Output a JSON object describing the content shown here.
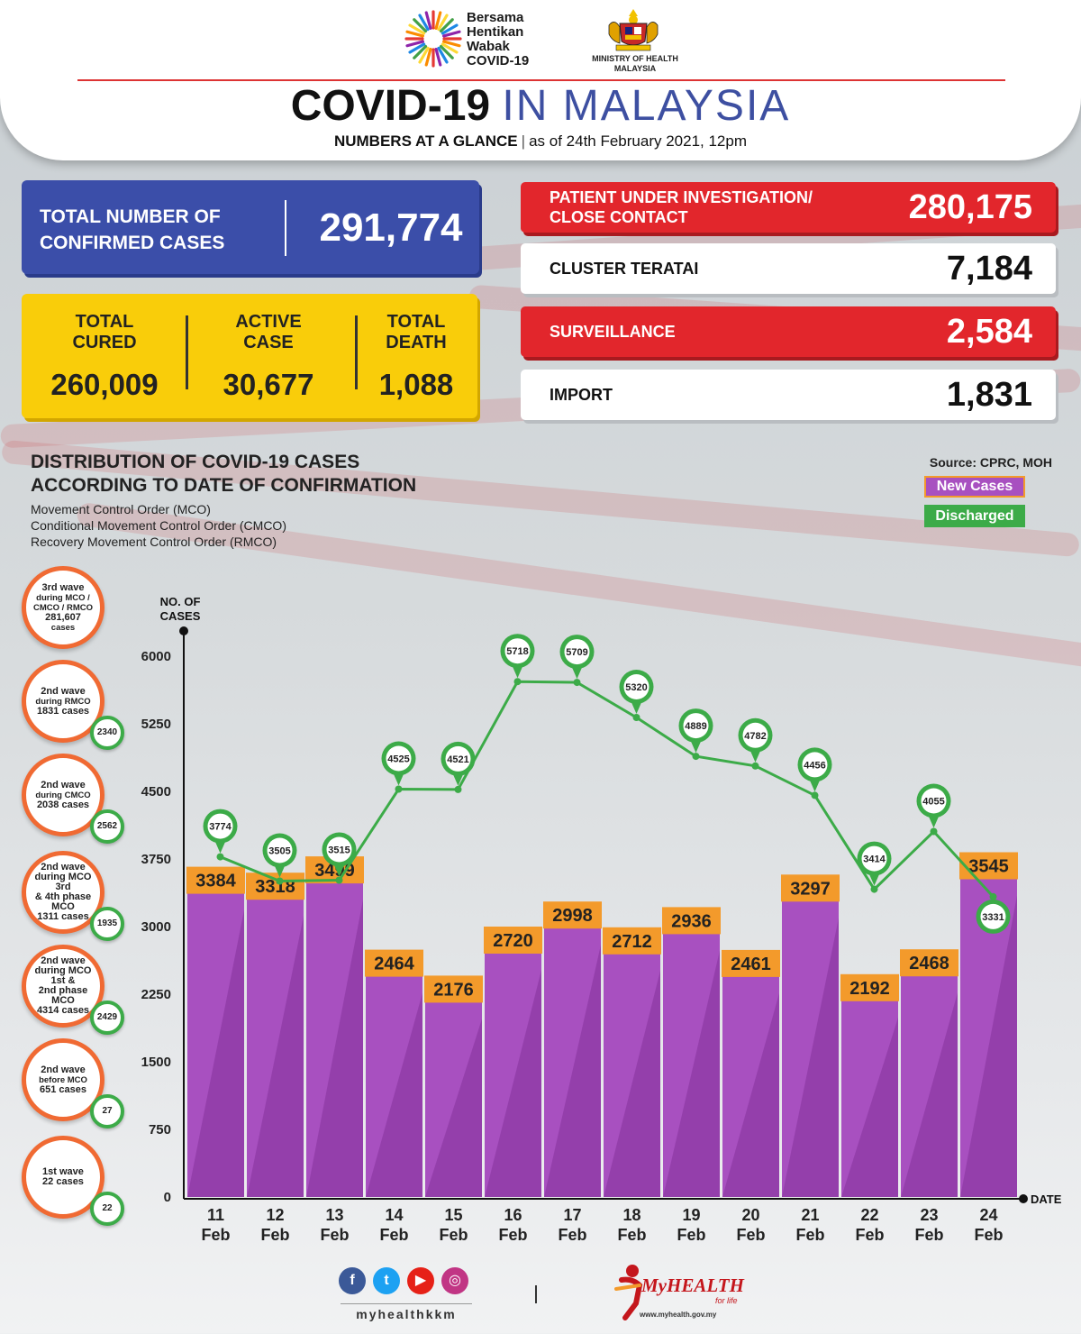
{
  "header": {
    "campaign_lines": [
      "Bersama",
      "Hentikan",
      "Wabak",
      "COVID-19"
    ],
    "ministry_lines": [
      "MINISTRY OF HEALTH",
      "MALAYSIA"
    ],
    "title_bold": "COVID-19",
    "title_light": "IN MALAYSIA",
    "subtitle_bold": "NUMBERS AT A GLANCE",
    "subtitle_date": "as of 24th February 2021, 12pm"
  },
  "confirmed": {
    "label_lines": [
      "TOTAL NUMBER OF",
      "CONFIRMED CASES"
    ],
    "value": "291,774"
  },
  "summary": [
    {
      "label_lines": [
        "TOTAL",
        "CURED"
      ],
      "value": "260,009"
    },
    {
      "label_lines": [
        "ACTIVE",
        "CASE"
      ],
      "value": "30,677"
    },
    {
      "label_lines": [
        "TOTAL",
        "DEATH"
      ],
      "value": "1,088"
    }
  ],
  "categories_right": [
    {
      "label_lines": [
        "PATIENT UNDER INVESTIGATION/",
        "CLOSE CONTACT"
      ],
      "value": "280,175",
      "style": "red"
    },
    {
      "label_lines": [
        "CLUSTER TERATAI"
      ],
      "value": "7,184",
      "style": "white"
    },
    {
      "label_lines": [
        "SURVEILLANCE"
      ],
      "value": "2,584",
      "style": "red"
    },
    {
      "label_lines": [
        "IMPORT"
      ],
      "value": "1,831",
      "style": "white"
    }
  ],
  "chart_header": {
    "title_lines": [
      "DISTRIBUTION OF COVID-19 CASES",
      "ACCORDING TO DATE OF CONFIRMATION"
    ],
    "subtitle_lines": [
      "Movement Control Order (MCO)",
      "Conditional Movement Control Order (CMCO)",
      "Recovery Movement Control Order (RMCO)"
    ],
    "source": "Source: CPRC, MOH",
    "legend_new": "New Cases",
    "legend_discharged": "Discharged"
  },
  "waves": [
    {
      "lines": [
        "3rd wave",
        "during MCO /",
        "CMCO / RMCO",
        "281,607",
        "cases"
      ],
      "badge": ""
    },
    {
      "lines": [
        "2nd wave",
        "during RMCO",
        "1831 cases"
      ],
      "badge": "2340"
    },
    {
      "lines": [
        "2nd wave",
        "during CMCO",
        "2038 cases"
      ],
      "badge": "2562"
    },
    {
      "lines": [
        "2nd wave",
        "during MCO 3rd",
        "& 4th phase MCO",
        "1311 cases"
      ],
      "badge": "1935"
    },
    {
      "lines": [
        "2nd wave",
        "during MCO 1st &",
        "2nd phase MCO",
        "4314 cases"
      ],
      "badge": "2429"
    },
    {
      "lines": [
        "2nd wave",
        "before MCO",
        "651 cases"
      ],
      "badge": "27"
    },
    {
      "lines": [
        "1st wave",
        "22 cases"
      ],
      "badge": "22"
    }
  ],
  "chart_data": {
    "type": "bar",
    "ylabel_lines": [
      "NO. OF",
      "CASES"
    ],
    "xlabel": "DATE",
    "ylim": [
      0,
      6000
    ],
    "yticks": [
      0,
      750,
      1500,
      2250,
      3000,
      3750,
      4500,
      5250,
      6000
    ],
    "categories": [
      [
        "11",
        "Feb"
      ],
      [
        "12",
        "Feb"
      ],
      [
        "13",
        "Feb"
      ],
      [
        "14",
        "Feb"
      ],
      [
        "15",
        "Feb"
      ],
      [
        "16",
        "Feb"
      ],
      [
        "17",
        "Feb"
      ],
      [
        "18",
        "Feb"
      ],
      [
        "19",
        "Feb"
      ],
      [
        "20",
        "Feb"
      ],
      [
        "21",
        "Feb"
      ],
      [
        "22",
        "Feb"
      ],
      [
        "23",
        "Feb"
      ],
      [
        "24",
        "Feb"
      ]
    ],
    "series": [
      {
        "name": "New Cases",
        "type": "bar",
        "color": "#a850c0",
        "values": [
          3384,
          3318,
          3499,
          2464,
          2176,
          2720,
          2998,
          2712,
          2936,
          2461,
          3297,
          2192,
          2468,
          3545
        ]
      },
      {
        "name": "Discharged",
        "type": "line",
        "color": "#3cab48",
        "values": [
          3774,
          3505,
          3515,
          4525,
          4521,
          5718,
          5709,
          5320,
          4889,
          4782,
          4456,
          3414,
          4055,
          3331
        ]
      }
    ],
    "grid": false,
    "legend": "top-right"
  },
  "footer": {
    "social_icons": [
      "facebook-icon",
      "twitter-icon",
      "youtube-icon",
      "instagram-icon"
    ],
    "handle": "myhealthkkm",
    "brand": "MyHEALTH",
    "brand_tagline": "for life",
    "url": "www.myhealth.gov.my"
  },
  "colors": {
    "blue": "#3b4ea9",
    "yellow": "#f9cd0a",
    "red": "#e2262c",
    "bar": "#a850c0",
    "bar_label": "#f39a2b",
    "line": "#3cab48",
    "wave_ring": "#f06a33"
  }
}
